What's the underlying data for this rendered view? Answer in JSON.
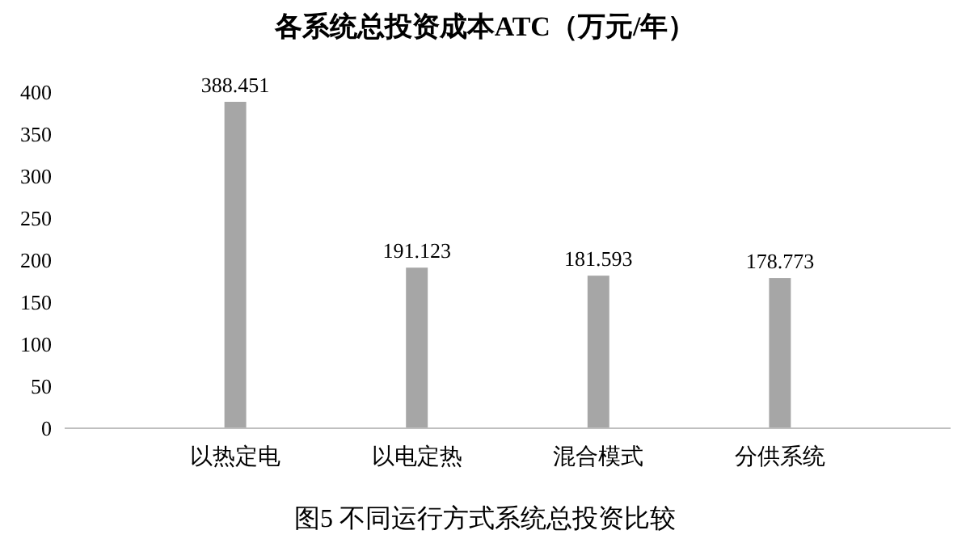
{
  "chart_data": {
    "type": "bar",
    "title": "各系统总投资成本ATC（万元/年）",
    "categories": [
      "以热定电",
      "以电定热",
      "混合模式",
      "分供系统"
    ],
    "values": [
      388.451,
      191.123,
      181.593,
      178.773
    ],
    "color": "#a6a6a6",
    "ylim": [
      0,
      400
    ],
    "yticks": [
      0,
      50,
      100,
      150,
      200,
      250,
      300,
      350,
      400
    ],
    "grid": false,
    "data_labels": true,
    "annotations": [
      "图5 不同运行方式系统总投资比较"
    ]
  }
}
